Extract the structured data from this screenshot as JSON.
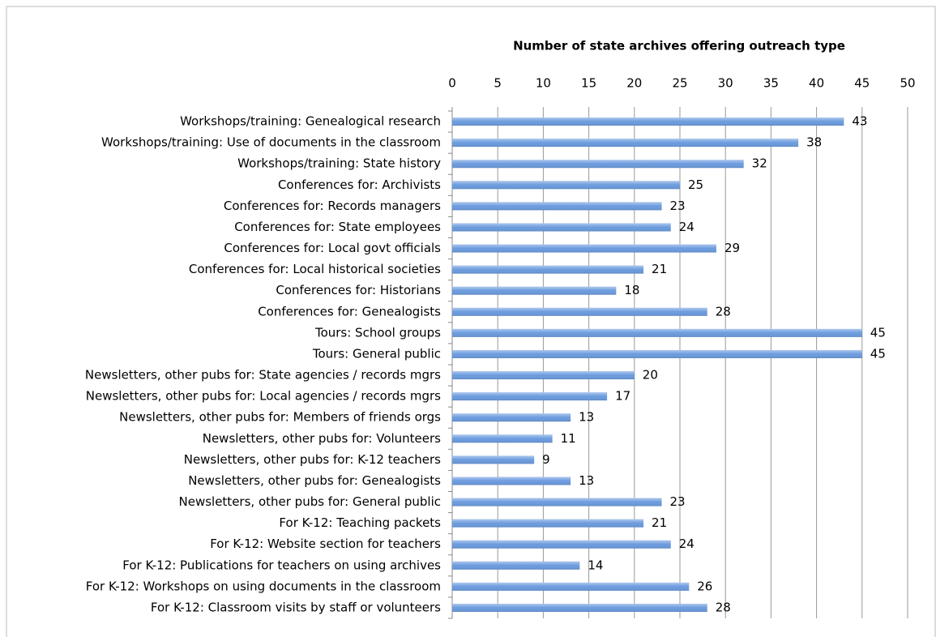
{
  "chart_data": {
    "type": "barh",
    "title": "Number of state archives offering outreach type",
    "categories": [
      "Workshops/training: Genealogical research",
      "Workshops/training: Use of documents in the classroom",
      "Workshops/training: State history",
      "Conferences for: Archivists",
      "Conferences for: Records managers",
      "Conferences for: State employees",
      "Conferences for: Local govt officials",
      "Conferences for: Local historical societies",
      "Conferences for: Historians",
      "Conferences for: Genealogists",
      "Tours: School groups",
      "Tours: General public",
      "Newsletters, other pubs for: State agencies / records mgrs",
      "Newsletters, other pubs for: Local agencies / records mgrs",
      "Newsletters, other pubs for: Members of friends orgs",
      "Newsletters, other pubs for: Volunteers",
      "Newsletters, other pubs for: K-12 teachers",
      "Newsletters, other pubs for: Genealogists",
      "Newsletters, other pubs for: General public",
      "For K-12: Teaching packets",
      "For K-12: Website section for teachers",
      "For K-12: Publications for teachers on using archives",
      "For K-12: Workshops on using documents in the classroom",
      "For K-12: Classroom visits by staff or volunteers"
    ],
    "values": [
      43,
      38,
      32,
      25,
      23,
      24,
      29,
      21,
      18,
      28,
      45,
      45,
      20,
      17,
      13,
      11,
      9,
      13,
      23,
      21,
      24,
      14,
      26,
      28
    ],
    "color": "#6b9bde",
    "xlim": [
      0,
      50
    ],
    "xticks": [
      0,
      5,
      10,
      15,
      20,
      25,
      30,
      35,
      40,
      45,
      50
    ],
    "grid": true
  }
}
